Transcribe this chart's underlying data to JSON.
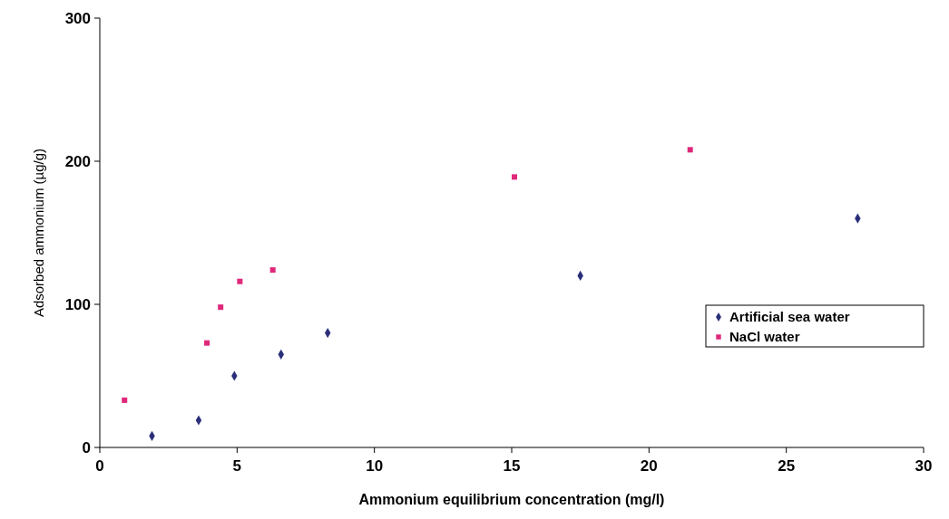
{
  "chart_data": {
    "type": "scatter",
    "xlabel": "Ammonium equilibrium concentration (mg/l)",
    "ylabel": "Adsorbed ammonium (µg/g)",
    "xlim": [
      0,
      30
    ],
    "xticks": [
      0,
      5,
      10,
      15,
      20,
      25,
      30
    ],
    "ylim": [
      0,
      300
    ],
    "yticks": [
      0,
      100,
      200,
      300
    ],
    "grid": false,
    "legend": "right",
    "series": [
      {
        "name": "Artificial sea water",
        "color": "#2b2f7a",
        "marker": "diamond",
        "x": [
          1.9,
          3.6,
          4.9,
          6.6,
          8.3,
          17.5,
          27.6
        ],
        "values": [
          8,
          19,
          50,
          65,
          80,
          120,
          160
        ]
      },
      {
        "name": "NaCl water",
        "color": "#e0287a",
        "marker": "square",
        "x": [
          0.9,
          3.9,
          4.4,
          5.1,
          6.3,
          15.1,
          21.5
        ],
        "values": [
          33,
          73,
          98,
          116,
          124,
          189,
          208
        ]
      }
    ]
  }
}
